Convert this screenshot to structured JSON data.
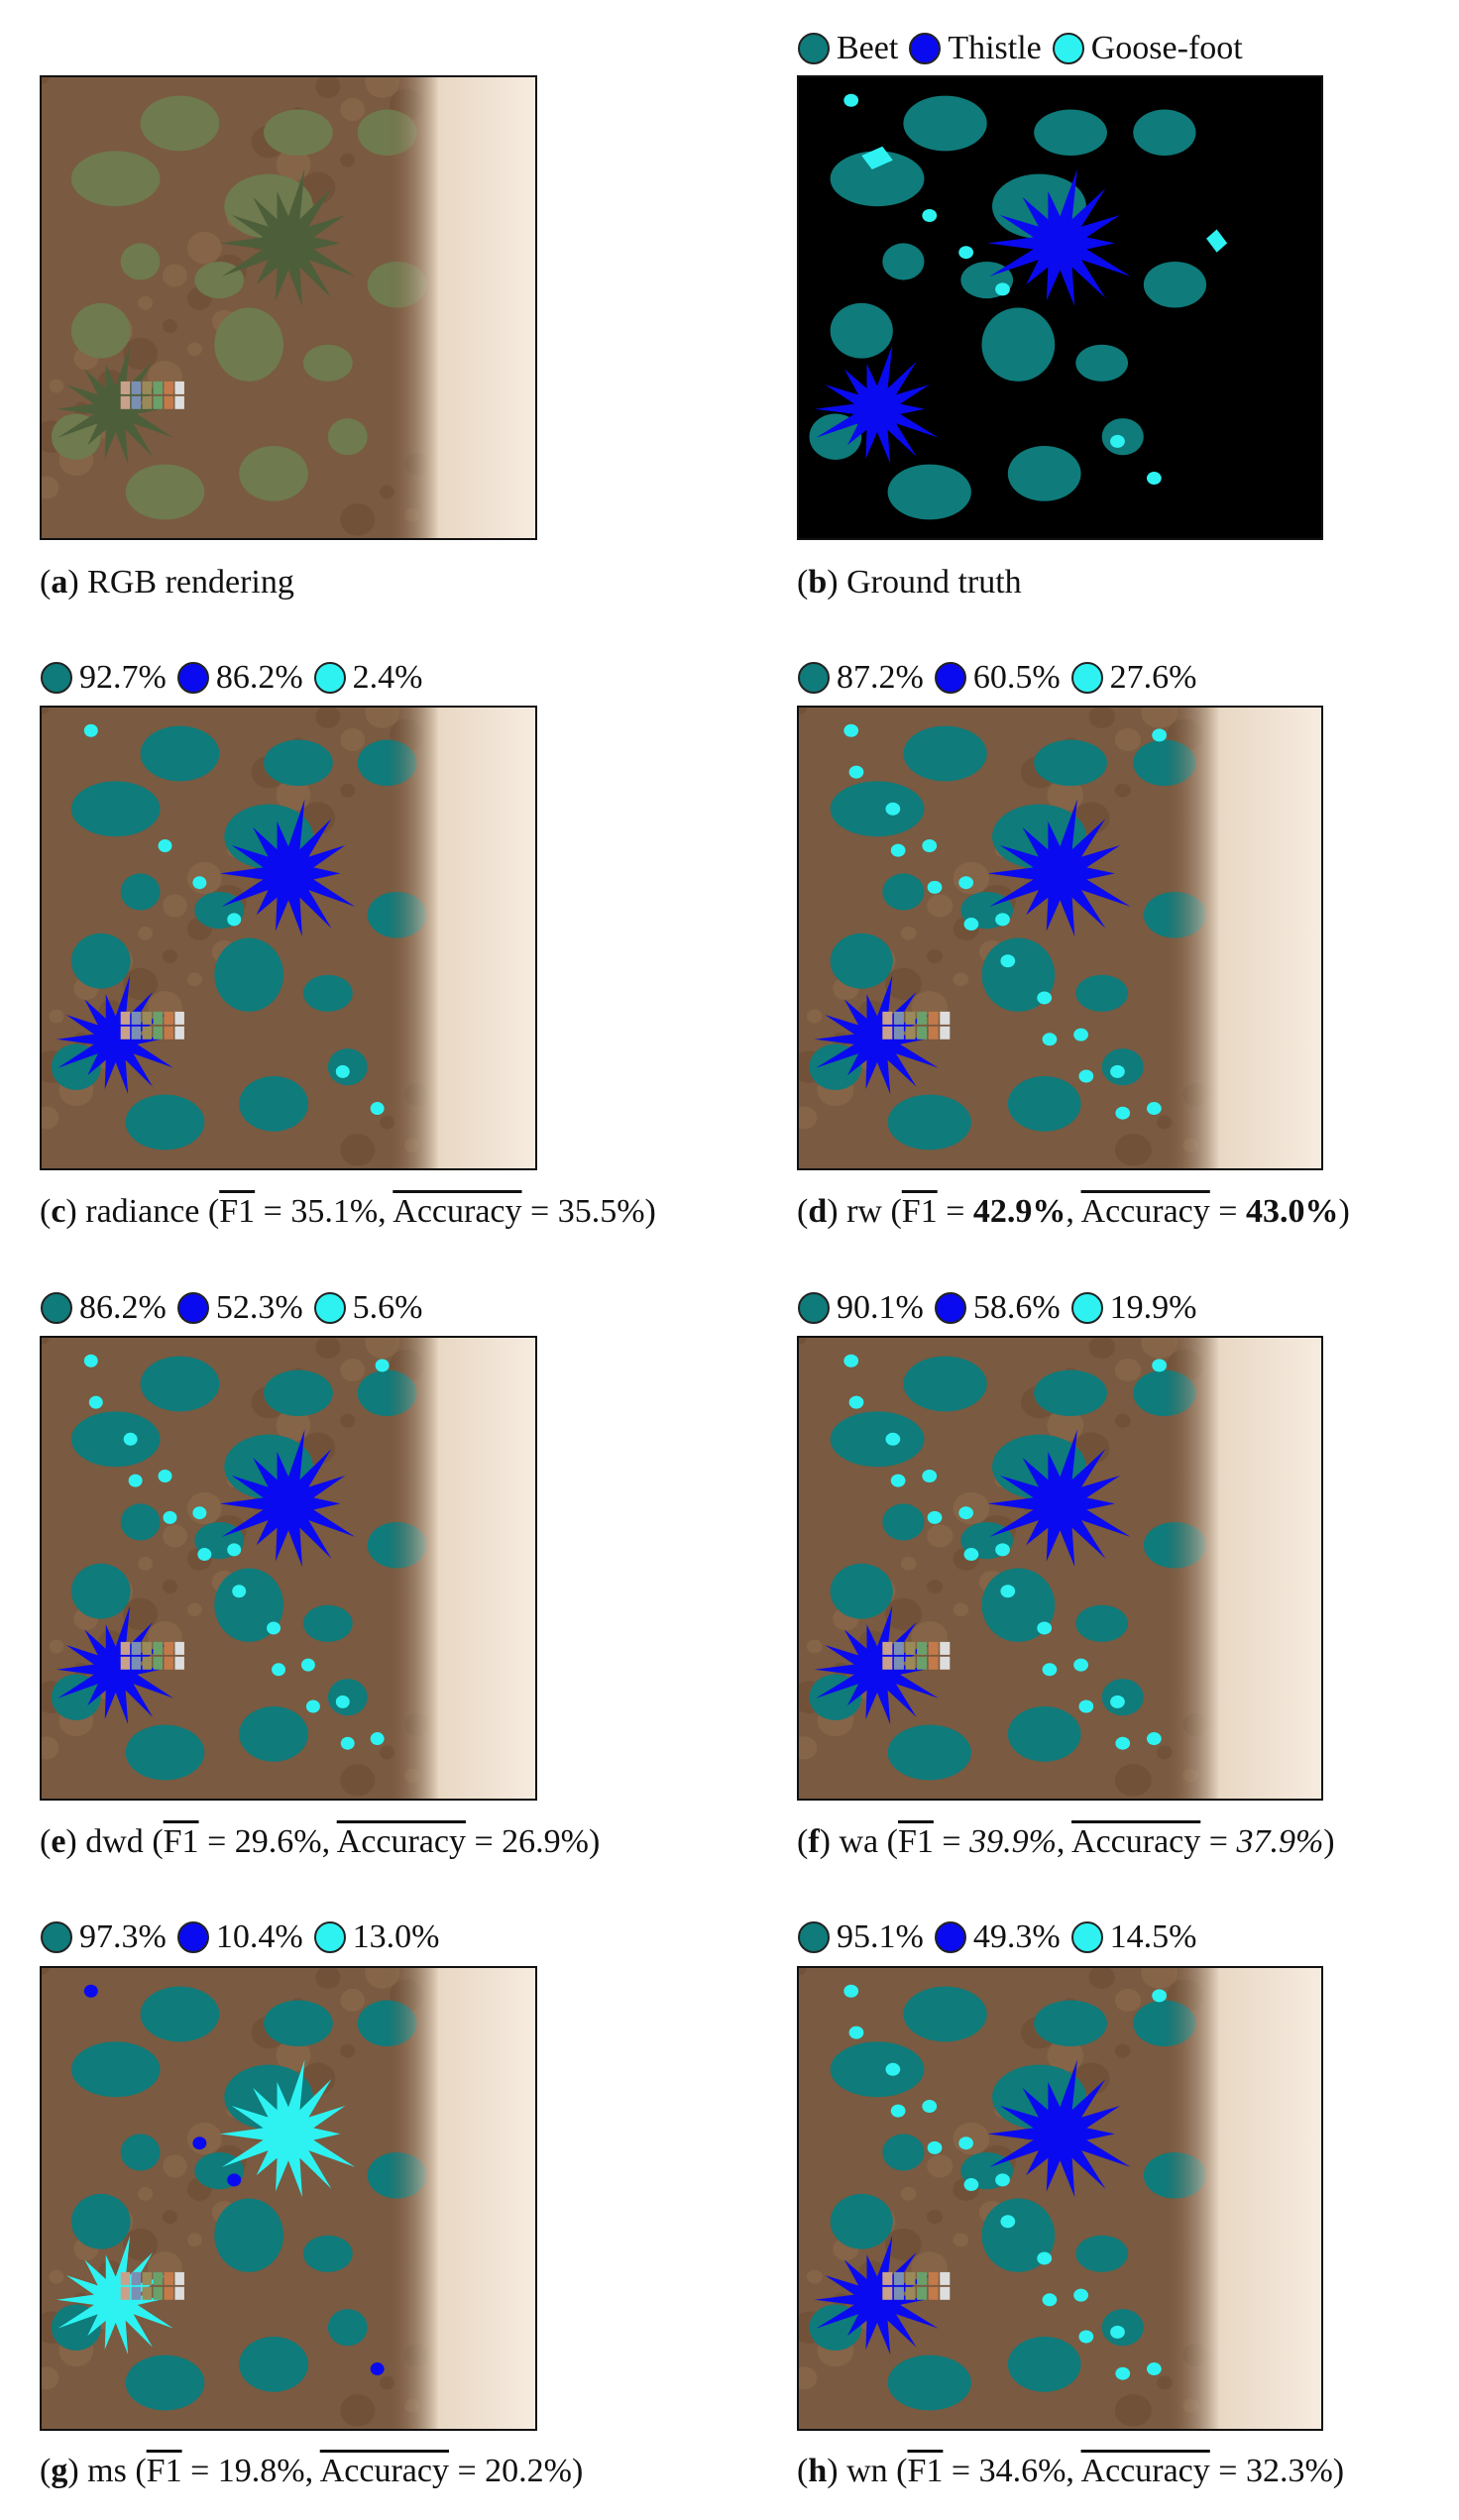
{
  "legend": {
    "items": [
      "Beet",
      "Thistle",
      "Goose-foot"
    ],
    "colors": [
      "#0f7b7b",
      "#0a0af0",
      "#2ef2f2"
    ]
  },
  "metric_labels": {
    "f1": "F1",
    "accuracy": "Accuracy"
  },
  "panels": [
    {
      "label": "a",
      "caption": "RGB rendering"
    },
    {
      "label": "b",
      "caption": "Ground truth"
    },
    {
      "label": "c",
      "method": "radiance",
      "f1": "35.1%",
      "accuracy": "35.5%",
      "scores": [
        "92.7%",
        "86.2%",
        "2.4%"
      ]
    },
    {
      "label": "d",
      "method": "rw",
      "f1": "42.9%",
      "accuracy": "43.0%",
      "scores": [
        "87.2%",
        "60.5%",
        "27.6%"
      ]
    },
    {
      "label": "e",
      "method": "dwd",
      "f1": "29.6%",
      "accuracy": "26.9%",
      "scores": [
        "86.2%",
        "52.3%",
        "5.6%"
      ]
    },
    {
      "label": "f",
      "method": "wa",
      "f1": "39.9%",
      "accuracy": "37.9%",
      "scores": [
        "90.1%",
        "58.6%",
        "19.9%"
      ]
    },
    {
      "label": "g",
      "method": "ms",
      "f1": "19.8%",
      "accuracy": "20.2%",
      "scores": [
        "97.3%",
        "10.4%",
        "13.0%"
      ]
    },
    {
      "label": "h",
      "method": "wn",
      "f1": "34.6%",
      "accuracy": "32.3%",
      "scores": [
        "95.1%",
        "49.3%",
        "14.5%"
      ]
    }
  ]
}
